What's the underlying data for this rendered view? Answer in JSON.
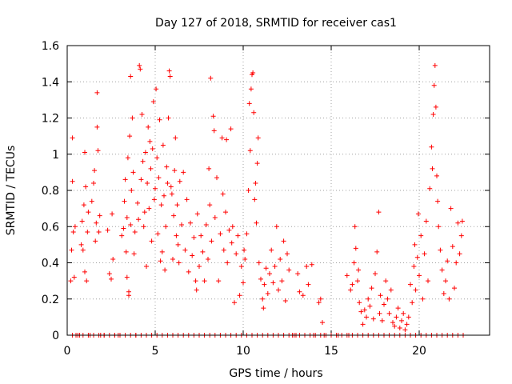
{
  "chart_data": {
    "type": "scatter",
    "title": "Day 127 of 2018, SRMTID for receiver cas1",
    "xlabel": "GPS time / hours",
    "ylabel": "SRMTID / TECUs",
    "xlim": [
      0,
      24
    ],
    "ylim": [
      0,
      1.6
    ],
    "xticks": [
      0,
      5,
      10,
      15,
      20
    ],
    "xtick_labels": [
      "0",
      "5",
      "10",
      "15",
      "20"
    ],
    "yticks": [
      0,
      0.2,
      0.4,
      0.6,
      0.8,
      1,
      1.2,
      1.4,
      1.6
    ],
    "ytick_labels": [
      "0",
      "0.2",
      "0.4",
      "0.6",
      "0.8",
      "1",
      "1.2",
      "1.4",
      "1.6"
    ],
    "grid": true,
    "marker": "plus",
    "color": "#ff0000",
    "series": [
      {
        "name": "SRMTID",
        "points": [
          [
            0.2,
            0.3
          ],
          [
            0.25,
            0.47
          ],
          [
            0.3,
            0.85
          ],
          [
            0.3,
            1.09
          ],
          [
            0.35,
            0.57
          ],
          [
            0.4,
            0.32
          ],
          [
            0.45,
            0.6
          ],
          [
            0.5,
            0.0
          ],
          [
            0.7,
            0.0
          ],
          [
            0.8,
            0.5
          ],
          [
            0.85,
            0.63
          ],
          [
            0.9,
            0.47
          ],
          [
            0.95,
            0.72
          ],
          [
            1.0,
            0.35
          ],
          [
            1.0,
            1.01
          ],
          [
            1.05,
            0.82
          ],
          [
            1.1,
            0.3
          ],
          [
            1.15,
            0.57
          ],
          [
            1.2,
            0.68
          ],
          [
            1.3,
            0.0
          ],
          [
            1.4,
            0.74
          ],
          [
            1.5,
            0.84
          ],
          [
            1.55,
            0.91
          ],
          [
            1.6,
            0.52
          ],
          [
            1.65,
            0.62
          ],
          [
            1.7,
            1.34
          ],
          [
            1.7,
            1.15
          ],
          [
            1.75,
            1.02
          ],
          [
            1.8,
            0.57
          ],
          [
            1.85,
            0.66
          ],
          [
            1.9,
            0.0
          ],
          [
            2.1,
            0.0
          ],
          [
            2.3,
            0.58
          ],
          [
            2.4,
            0.34
          ],
          [
            2.5,
            0.31
          ],
          [
            2.55,
            0.67
          ],
          [
            2.6,
            0.42
          ],
          [
            2.7,
            0.0
          ],
          [
            2.9,
            0.0
          ],
          [
            3.1,
            0.55
          ],
          [
            3.2,
            0.59
          ],
          [
            3.25,
            0.74
          ],
          [
            3.3,
            0.86
          ],
          [
            3.35,
            0.46
          ],
          [
            3.4,
            0.65
          ],
          [
            3.4,
            0.32
          ],
          [
            3.45,
            0.98
          ],
          [
            3.5,
            0.22
          ],
          [
            3.5,
            0.24
          ],
          [
            3.55,
            1.1
          ],
          [
            3.6,
            0.61
          ],
          [
            3.6,
            1.43
          ],
          [
            3.65,
            0.8
          ],
          [
            3.7,
            1.2
          ],
          [
            3.75,
            0.9
          ],
          [
            3.8,
            0.45
          ],
          [
            3.85,
            0.57
          ],
          [
            3.9,
            0.0
          ],
          [
            4.0,
            0.73
          ],
          [
            4.05,
            0.64
          ],
          [
            4.1,
            1.49
          ],
          [
            4.15,
            1.47
          ],
          [
            4.2,
            0.86
          ],
          [
            4.25,
            1.22
          ],
          [
            4.3,
            0.96
          ],
          [
            4.35,
            0.6
          ],
          [
            4.4,
            0.68
          ],
          [
            4.45,
            1.01
          ],
          [
            4.5,
            0.38
          ],
          [
            4.55,
            0.84
          ],
          [
            4.6,
            1.15
          ],
          [
            4.65,
            0.7
          ],
          [
            4.7,
            1.07
          ],
          [
            4.75,
            0.92
          ],
          [
            4.8,
            0.52
          ],
          [
            4.85,
            1.03
          ],
          [
            4.9,
            1.29
          ],
          [
            4.95,
            0.75
          ],
          [
            5.0,
            0.81
          ],
          [
            5.05,
            1.36
          ],
          [
            5.1,
            0.98
          ],
          [
            5.15,
            0.56
          ],
          [
            5.2,
            0.87
          ],
          [
            5.25,
            1.19
          ],
          [
            5.3,
            0.41
          ],
          [
            5.35,
            0.72
          ],
          [
            5.4,
            0.46
          ],
          [
            5.45,
            1.05
          ],
          [
            5.5,
            0.77
          ],
          [
            5.55,
            0.36
          ],
          [
            5.6,
            0.6
          ],
          [
            5.65,
            0.93
          ],
          [
            5.7,
            0.84
          ],
          [
            5.75,
            1.2
          ],
          [
            5.8,
            1.46
          ],
          [
            5.85,
            1.43
          ],
          [
            5.9,
            0.82
          ],
          [
            5.95,
            0.78
          ],
          [
            6.0,
            0.42
          ],
          [
            6.05,
            0.66
          ],
          [
            6.1,
            0.91
          ],
          [
            6.15,
            1.09
          ],
          [
            6.2,
            0.55
          ],
          [
            6.25,
            0.72
          ],
          [
            6.3,
            0.5
          ],
          [
            6.35,
            0.4
          ],
          [
            6.4,
            0.85
          ],
          [
            6.5,
            0.61
          ],
          [
            6.6,
            0.9
          ],
          [
            6.7,
            0.47
          ],
          [
            6.8,
            0.75
          ],
          [
            6.9,
            0.35
          ],
          [
            7.0,
            0.62
          ],
          [
            7.1,
            0.44
          ],
          [
            7.2,
            0.54
          ],
          [
            7.3,
            0.3
          ],
          [
            7.35,
            0.25
          ],
          [
            7.4,
            0.67
          ],
          [
            7.5,
            0.38
          ],
          [
            7.6,
            0.55
          ],
          [
            7.7,
            0.46
          ],
          [
            7.8,
            0.3
          ],
          [
            7.9,
            0.61
          ],
          [
            8.0,
            0.42
          ],
          [
            8.05,
            0.92
          ],
          [
            8.1,
            0.72
          ],
          [
            8.15,
            1.42
          ],
          [
            8.2,
            0.52
          ],
          [
            8.3,
            1.21
          ],
          [
            8.35,
            1.13
          ],
          [
            8.4,
            0.65
          ],
          [
            8.5,
            0.87
          ],
          [
            8.6,
            0.3
          ],
          [
            8.7,
            0.56
          ],
          [
            8.8,
            1.09
          ],
          [
            8.85,
            0.78
          ],
          [
            8.9,
            0.47
          ],
          [
            9.0,
            0.68
          ],
          [
            9.05,
            1.08
          ],
          [
            9.1,
            0.4
          ],
          [
            9.2,
            0.58
          ],
          [
            9.3,
            1.14
          ],
          [
            9.35,
            0.51
          ],
          [
            9.4,
            0.6
          ],
          [
            9.5,
            0.18
          ],
          [
            9.6,
            0.45
          ],
          [
            9.7,
            0.55
          ],
          [
            9.8,
            0.22
          ],
          [
            9.9,
            0.38
          ],
          [
            10.0,
            0.29
          ],
          [
            10.05,
            0.47
          ],
          [
            10.1,
            0.42
          ],
          [
            10.2,
            0.56
          ],
          [
            10.3,
            0.8
          ],
          [
            10.35,
            1.28
          ],
          [
            10.4,
            1.02
          ],
          [
            10.45,
            1.36
          ],
          [
            10.5,
            1.44
          ],
          [
            10.55,
            1.45
          ],
          [
            10.6,
            1.23
          ],
          [
            10.65,
            0.75
          ],
          [
            10.7,
            0.84
          ],
          [
            10.75,
            0.62
          ],
          [
            10.8,
            0.95
          ],
          [
            10.85,
            1.09
          ],
          [
            10.9,
            0.4
          ],
          [
            11.0,
            0.31
          ],
          [
            11.1,
            0.2
          ],
          [
            11.15,
            0.15
          ],
          [
            11.2,
            0.28
          ],
          [
            11.3,
            0.37
          ],
          [
            11.4,
            0.23
          ],
          [
            11.5,
            0.34
          ],
          [
            11.6,
            0.47
          ],
          [
            11.7,
            0.29
          ],
          [
            11.8,
            0.38
          ],
          [
            11.9,
            0.6
          ],
          [
            12.0,
            0.25
          ],
          [
            12.1,
            0.42
          ],
          [
            12.2,
            0.3
          ],
          [
            12.3,
            0.52
          ],
          [
            12.4,
            0.19
          ],
          [
            12.5,
            0.45
          ],
          [
            12.6,
            0.36
          ],
          [
            12.8,
            0.0
          ],
          [
            13.0,
            0.0
          ],
          [
            13.1,
            0.34
          ],
          [
            13.2,
            0.24
          ],
          [
            13.4,
            0.22
          ],
          [
            13.6,
            0.38
          ],
          [
            13.7,
            0.28
          ],
          [
            13.9,
            0.39
          ],
          [
            14.0,
            0.0
          ],
          [
            14.3,
            0.18
          ],
          [
            14.4,
            0.2
          ],
          [
            14.5,
            0.07
          ],
          [
            14.6,
            0.0
          ],
          [
            15.0,
            0.0
          ],
          [
            15.4,
            0.0
          ],
          [
            15.9,
            0.33
          ],
          [
            16.0,
            0.0
          ],
          [
            16.1,
            0.25
          ],
          [
            16.2,
            0.28
          ],
          [
            16.3,
            0.4
          ],
          [
            16.35,
            0.6
          ],
          [
            16.4,
            0.48
          ],
          [
            16.5,
            0.3
          ],
          [
            16.55,
            0.36
          ],
          [
            16.6,
            0.18
          ],
          [
            16.7,
            0.13
          ],
          [
            16.8,
            0.06
          ],
          [
            16.9,
            0.14
          ],
          [
            17.0,
            0.1
          ],
          [
            17.1,
            0.2
          ],
          [
            17.2,
            0.16
          ],
          [
            17.3,
            0.26
          ],
          [
            17.4,
            0.09
          ],
          [
            17.5,
            0.34
          ],
          [
            17.6,
            0.46
          ],
          [
            17.7,
            0.68
          ],
          [
            17.75,
            0.12
          ],
          [
            17.8,
            0.22
          ],
          [
            17.9,
            0.08
          ],
          [
            18.0,
            0.17
          ],
          [
            18.1,
            0.3
          ],
          [
            18.2,
            0.2
          ],
          [
            18.3,
            0.12
          ],
          [
            18.4,
            0.25
          ],
          [
            18.5,
            0.07
          ],
          [
            18.6,
            0.05
          ],
          [
            18.7,
            0.1
          ],
          [
            18.8,
            0.15
          ],
          [
            18.9,
            0.04
          ],
          [
            19.0,
            0.08
          ],
          [
            19.1,
            0.12
          ],
          [
            19.2,
            0.03
          ],
          [
            19.3,
            0.06
          ],
          [
            19.4,
            0.1
          ],
          [
            19.5,
            0.28
          ],
          [
            19.6,
            0.18
          ],
          [
            19.7,
            0.38
          ],
          [
            19.75,
            0.5
          ],
          [
            19.8,
            0.25
          ],
          [
            19.9,
            0.43
          ],
          [
            19.95,
            0.67
          ],
          [
            20.0,
            0.33
          ],
          [
            20.1,
            0.55
          ],
          [
            20.2,
            0.2
          ],
          [
            20.3,
            0.45
          ],
          [
            20.4,
            0.63
          ],
          [
            20.5,
            0.3
          ],
          [
            20.6,
            0.81
          ],
          [
            20.7,
            1.04
          ],
          [
            20.75,
            0.92
          ],
          [
            20.8,
            1.22
          ],
          [
            20.85,
            1.38
          ],
          [
            20.9,
            1.49
          ],
          [
            20.95,
            1.26
          ],
          [
            21.0,
            0.88
          ],
          [
            21.05,
            0.74
          ],
          [
            21.1,
            0.6
          ],
          [
            21.2,
            0.47
          ],
          [
            21.3,
            0.36
          ],
          [
            21.4,
            0.23
          ],
          [
            21.5,
            0.3
          ],
          [
            21.6,
            0.41
          ],
          [
            21.7,
            0.2
          ],
          [
            21.8,
            0.7
          ],
          [
            21.9,
            0.49
          ],
          [
            22.0,
            0.26
          ],
          [
            22.1,
            0.4
          ],
          [
            22.2,
            0.62
          ],
          [
            22.3,
            0.45
          ],
          [
            22.4,
            0.55
          ],
          [
            22.45,
            0.63
          ]
        ]
      }
    ],
    "zero_line_points": [
      0.3,
      0.6,
      0.9,
      1.2,
      1.5,
      1.8,
      2.1,
      2.4,
      2.7,
      3.0,
      3.3,
      3.6,
      3.9,
      4.2,
      4.5,
      4.8,
      5.1,
      5.4,
      5.7,
      6.0,
      6.3,
      6.6,
      6.9,
      7.2,
      7.5,
      7.8,
      8.1,
      8.4,
      8.7,
      9.0,
      9.3,
      9.6,
      9.9,
      10.2,
      10.5,
      10.8,
      11.1,
      11.4,
      11.7,
      12.0,
      12.3,
      12.6,
      12.9,
      13.2,
      13.5,
      13.8,
      14.1,
      14.4,
      14.7,
      15.0,
      15.3,
      15.6,
      15.9,
      16.2,
      16.5,
      16.8,
      17.1,
      17.4,
      17.7,
      18.0,
      18.3,
      18.6,
      18.9,
      19.2,
      19.5,
      19.8,
      20.1,
      20.4,
      20.7,
      21.0,
      21.3,
      21.6,
      21.9,
      22.2,
      22.5
    ]
  }
}
